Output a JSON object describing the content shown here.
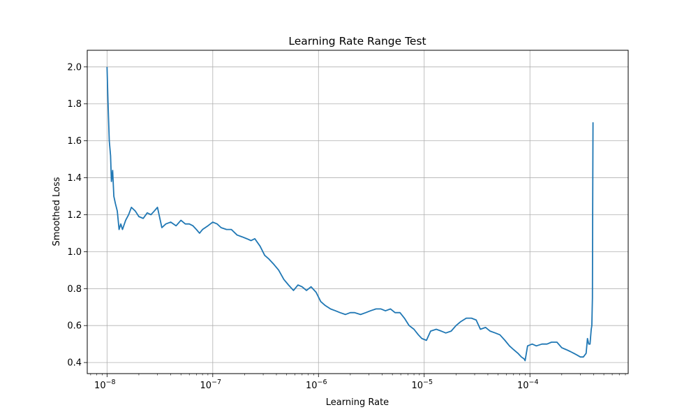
{
  "chart_data": {
    "type": "line",
    "title": "Learning Rate Range Test",
    "xlabel": "Learning Rate",
    "ylabel": "Smoothed Loss",
    "x_scale": "log",
    "xlim": [
      6.5e-09,
      0.00085
    ],
    "ylim": [
      0.34,
      2.09
    ],
    "grid": true,
    "legend": "none",
    "line_color": "#1f77b4",
    "xtick_values": [
      1e-08,
      1e-07,
      1e-06,
      1e-05,
      0.0001
    ],
    "xtick_base": "10",
    "xtick_exponents": [
      "−8",
      "−7",
      "−6",
      "−5",
      "−4"
    ],
    "ytick_values": [
      0.4,
      0.6,
      0.8,
      1.0,
      1.2,
      1.4,
      1.6,
      1.8,
      2.0
    ],
    "ytick_labels": [
      "0.4",
      "0.6",
      "0.8",
      "1.0",
      "1.2",
      "1.4",
      "1.6",
      "1.8",
      "2.0"
    ],
    "series": [
      {
        "x": [
          1e-08,
          1.02e-08,
          1.05e-08,
          1.08e-08,
          1.1e-08,
          1.13e-08,
          1.16e-08,
          1.2e-08,
          1.25e-08,
          1.3e-08,
          1.35e-08,
          1.4e-08,
          1.5e-08,
          1.6e-08,
          1.7e-08,
          1.85e-08,
          2e-08,
          2.2e-08,
          2.4e-08,
          2.6e-08,
          2.8e-08,
          3e-08,
          3.3e-08,
          3.6e-08,
          4e-08,
          4.5e-08,
          5e-08,
          5.5e-08,
          6e-08,
          6.5e-08,
          7e-08,
          7.5e-08,
          8e-08,
          9e-08,
          1e-07,
          1.1e-07,
          1.2e-07,
          1.35e-07,
          1.5e-07,
          1.7e-07,
          1.9e-07,
          2.1e-07,
          2.3e-07,
          2.5e-07,
          2.8e-07,
          3.1e-07,
          3.4e-07,
          3.8e-07,
          4.2e-07,
          4.7e-07,
          5.2e-07,
          5.8e-07,
          6.4e-07,
          7e-07,
          7.7e-07,
          8.5e-07,
          9.5e-07,
          1.05e-06,
          1.15e-06,
          1.3e-06,
          1.45e-06,
          1.6e-06,
          1.8e-06,
          2e-06,
          2.2e-06,
          2.5e-06,
          2.8e-06,
          3.1e-06,
          3.5e-06,
          3.9e-06,
          4.3e-06,
          4.8e-06,
          5.3e-06,
          5.9e-06,
          6.5e-06,
          7.2e-06,
          8e-06,
          8.8e-06,
          9.5e-06,
          1.05e-05,
          1.15e-05,
          1.3e-05,
          1.45e-05,
          1.6e-05,
          1.8e-05,
          2e-05,
          2.2e-05,
          2.5e-05,
          2.8e-05,
          3.1e-05,
          3.4e-05,
          3.8e-05,
          4.2e-05,
          4.7e-05,
          5.2e-05,
          5.8e-05,
          6.4e-05,
          7e-05,
          7.7e-05,
          8.3e-05,
          8.8e-05,
          9e-05,
          9.5e-05,
          0.000105,
          0.000115,
          0.00013,
          0.000145,
          0.00016,
          0.00018,
          0.0002,
          0.00022,
          0.00024,
          0.00026,
          0.00028,
          0.0003,
          0.00032,
          0.00034,
          0.00035,
          0.00036,
          0.00037,
          0.00038,
          0.000385,
          0.00039,
          0.000392,
          0.000395
        ],
        "y": [
          2.0,
          1.82,
          1.6,
          1.52,
          1.38,
          1.44,
          1.3,
          1.26,
          1.22,
          1.12,
          1.15,
          1.12,
          1.17,
          1.2,
          1.24,
          1.22,
          1.19,
          1.18,
          1.21,
          1.2,
          1.22,
          1.24,
          1.13,
          1.15,
          1.16,
          1.14,
          1.17,
          1.15,
          1.15,
          1.14,
          1.12,
          1.1,
          1.12,
          1.14,
          1.16,
          1.15,
          1.13,
          1.12,
          1.12,
          1.09,
          1.08,
          1.07,
          1.06,
          1.07,
          1.03,
          0.98,
          0.96,
          0.93,
          0.9,
          0.85,
          0.82,
          0.79,
          0.82,
          0.81,
          0.79,
          0.81,
          0.78,
          0.73,
          0.71,
          0.69,
          0.68,
          0.67,
          0.66,
          0.67,
          0.67,
          0.66,
          0.67,
          0.68,
          0.69,
          0.69,
          0.68,
          0.69,
          0.67,
          0.67,
          0.64,
          0.6,
          0.58,
          0.55,
          0.53,
          0.52,
          0.57,
          0.58,
          0.57,
          0.56,
          0.57,
          0.6,
          0.62,
          0.64,
          0.64,
          0.63,
          0.58,
          0.59,
          0.57,
          0.56,
          0.55,
          0.52,
          0.49,
          0.47,
          0.45,
          0.43,
          0.42,
          0.41,
          0.49,
          0.5,
          0.49,
          0.5,
          0.5,
          0.51,
          0.51,
          0.48,
          0.47,
          0.46,
          0.45,
          0.44,
          0.43,
          0.43,
          0.45,
          0.53,
          0.5,
          0.5,
          0.58,
          0.6,
          0.75,
          1.2,
          1.7
        ]
      }
    ]
  }
}
